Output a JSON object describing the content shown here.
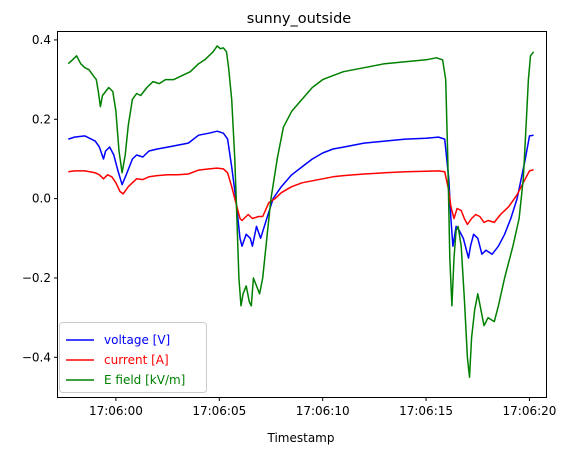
{
  "chart_data": {
    "type": "line",
    "title": "sunny_outside",
    "xlabel": "Timestamp",
    "ylabel": "",
    "x_unit": "seconds after 17:06:00",
    "xlim": [
      -2.8,
      20.8
    ],
    "ylim": [
      -0.5,
      0.42
    ],
    "x_ticks": [
      0,
      5,
      10,
      15,
      20
    ],
    "x_tick_labels": [
      "17:06:00",
      "17:06:05",
      "17:06:10",
      "17:06:15",
      "17:06:20"
    ],
    "y_ticks": [
      -0.4,
      -0.2,
      0.0,
      0.2,
      0.4
    ],
    "y_tick_labels": [
      "−0.4",
      "−0.2",
      "0.0",
      "0.2",
      "0.4"
    ],
    "grid": false,
    "legend": "lower-left",
    "series": [
      {
        "name": "voltage [V]",
        "color": "#0000ff",
        "points": [
          [
            -2.3,
            0.15
          ],
          [
            -2.0,
            0.155
          ],
          [
            -1.5,
            0.158
          ],
          [
            -1.0,
            0.145
          ],
          [
            -0.8,
            0.13
          ],
          [
            -0.6,
            0.1
          ],
          [
            -0.5,
            0.12
          ],
          [
            -0.3,
            0.13
          ],
          [
            -0.1,
            0.11
          ],
          [
            0.1,
            0.07
          ],
          [
            0.3,
            0.035
          ],
          [
            0.5,
            0.06
          ],
          [
            0.8,
            0.1
          ],
          [
            1.0,
            0.11
          ],
          [
            1.3,
            0.105
          ],
          [
            1.6,
            0.12
          ],
          [
            2.0,
            0.125
          ],
          [
            2.5,
            0.13
          ],
          [
            3.0,
            0.135
          ],
          [
            3.5,
            0.14
          ],
          [
            4.0,
            0.16
          ],
          [
            4.5,
            0.165
          ],
          [
            4.9,
            0.17
          ],
          [
            5.2,
            0.165
          ],
          [
            5.4,
            0.15
          ],
          [
            5.6,
            0.08
          ],
          [
            5.8,
            0.0
          ],
          [
            6.0,
            -0.1
          ],
          [
            6.1,
            -0.12
          ],
          [
            6.3,
            -0.09
          ],
          [
            6.5,
            -0.1
          ],
          [
            6.6,
            -0.12
          ],
          [
            6.8,
            -0.07
          ],
          [
            7.0,
            -0.1
          ],
          [
            7.3,
            -0.05
          ],
          [
            7.6,
            0.0
          ],
          [
            8.0,
            0.03
          ],
          [
            8.5,
            0.06
          ],
          [
            9.0,
            0.08
          ],
          [
            9.5,
            0.1
          ],
          [
            10.0,
            0.115
          ],
          [
            10.5,
            0.125
          ],
          [
            11.0,
            0.13
          ],
          [
            11.5,
            0.135
          ],
          [
            12.0,
            0.14
          ],
          [
            13.0,
            0.145
          ],
          [
            14.0,
            0.15
          ],
          [
            15.0,
            0.152
          ],
          [
            15.6,
            0.155
          ],
          [
            15.9,
            0.15
          ],
          [
            16.1,
            0.05
          ],
          [
            16.2,
            -0.05
          ],
          [
            16.3,
            -0.12
          ],
          [
            16.45,
            -0.07
          ],
          [
            16.6,
            -0.08
          ],
          [
            16.8,
            -0.1
          ],
          [
            16.9,
            -0.12
          ],
          [
            17.05,
            -0.15
          ],
          [
            17.15,
            -0.12
          ],
          [
            17.3,
            -0.09
          ],
          [
            17.5,
            -0.1
          ],
          [
            17.7,
            -0.14
          ],
          [
            17.9,
            -0.13
          ],
          [
            18.2,
            -0.14
          ],
          [
            18.5,
            -0.12
          ],
          [
            18.8,
            -0.09
          ],
          [
            19.1,
            -0.05
          ],
          [
            19.4,
            0.0
          ],
          [
            19.6,
            0.05
          ],
          [
            19.8,
            0.1
          ],
          [
            20.0,
            0.158
          ],
          [
            20.2,
            0.16
          ]
        ]
      },
      {
        "name": "current [A]",
        "color": "#ff0000",
        "points": [
          [
            -2.3,
            0.068
          ],
          [
            -2.0,
            0.07
          ],
          [
            -1.5,
            0.07
          ],
          [
            -1.0,
            0.065
          ],
          [
            -0.8,
            0.06
          ],
          [
            -0.6,
            0.05
          ],
          [
            -0.4,
            0.06
          ],
          [
            -0.2,
            0.055
          ],
          [
            0.0,
            0.04
          ],
          [
            0.2,
            0.018
          ],
          [
            0.35,
            0.012
          ],
          [
            0.6,
            0.03
          ],
          [
            1.0,
            0.05
          ],
          [
            1.3,
            0.048
          ],
          [
            1.6,
            0.055
          ],
          [
            2.0,
            0.058
          ],
          [
            2.5,
            0.06
          ],
          [
            3.0,
            0.06
          ],
          [
            3.5,
            0.062
          ],
          [
            4.0,
            0.072
          ],
          [
            4.5,
            0.075
          ],
          [
            4.9,
            0.077
          ],
          [
            5.2,
            0.075
          ],
          [
            5.4,
            0.065
          ],
          [
            5.6,
            0.03
          ],
          [
            5.8,
            -0.01
          ],
          [
            6.0,
            -0.05
          ],
          [
            6.1,
            -0.055
          ],
          [
            6.4,
            -0.04
          ],
          [
            6.6,
            -0.05
          ],
          [
            6.9,
            -0.045
          ],
          [
            7.1,
            -0.045
          ],
          [
            7.4,
            -0.01
          ],
          [
            7.7,
            0.0
          ],
          [
            8.0,
            0.015
          ],
          [
            8.5,
            0.03
          ],
          [
            9.0,
            0.04
          ],
          [
            9.5,
            0.045
          ],
          [
            10.0,
            0.05
          ],
          [
            10.5,
            0.055
          ],
          [
            11.0,
            0.058
          ],
          [
            12.0,
            0.062
          ],
          [
            13.0,
            0.065
          ],
          [
            14.0,
            0.068
          ],
          [
            15.0,
            0.069
          ],
          [
            15.6,
            0.07
          ],
          [
            15.9,
            0.068
          ],
          [
            16.1,
            0.02
          ],
          [
            16.2,
            -0.02
          ],
          [
            16.35,
            -0.05
          ],
          [
            16.5,
            -0.025
          ],
          [
            16.7,
            -0.03
          ],
          [
            16.85,
            -0.05
          ],
          [
            17.0,
            -0.065
          ],
          [
            17.2,
            -0.05
          ],
          [
            17.4,
            -0.04
          ],
          [
            17.6,
            -0.045
          ],
          [
            17.8,
            -0.06
          ],
          [
            18.0,
            -0.055
          ],
          [
            18.3,
            -0.06
          ],
          [
            18.6,
            -0.04
          ],
          [
            19.0,
            -0.02
          ],
          [
            19.4,
            0.01
          ],
          [
            19.8,
            0.05
          ],
          [
            20.0,
            0.07
          ],
          [
            20.2,
            0.073
          ]
        ]
      },
      {
        "name": "E field [kV/m]",
        "color": "#008000",
        "points": [
          [
            -2.3,
            0.34
          ],
          [
            -2.1,
            0.35
          ],
          [
            -1.9,
            0.36
          ],
          [
            -1.7,
            0.34
          ],
          [
            -1.5,
            0.33
          ],
          [
            -1.3,
            0.325
          ],
          [
            -1.1,
            0.31
          ],
          [
            -0.95,
            0.3
          ],
          [
            -0.85,
            0.27
          ],
          [
            -0.75,
            0.232
          ],
          [
            -0.65,
            0.26
          ],
          [
            -0.5,
            0.27
          ],
          [
            -0.35,
            0.28
          ],
          [
            -0.15,
            0.27
          ],
          [
            0.0,
            0.22
          ],
          [
            0.15,
            0.12
          ],
          [
            0.3,
            0.065
          ],
          [
            0.45,
            0.11
          ],
          [
            0.6,
            0.185
          ],
          [
            0.8,
            0.25
          ],
          [
            1.0,
            0.265
          ],
          [
            1.2,
            0.26
          ],
          [
            1.5,
            0.28
          ],
          [
            1.8,
            0.295
          ],
          [
            2.1,
            0.29
          ],
          [
            2.4,
            0.3
          ],
          [
            2.8,
            0.3
          ],
          [
            3.2,
            0.31
          ],
          [
            3.6,
            0.32
          ],
          [
            4.0,
            0.34
          ],
          [
            4.3,
            0.35
          ],
          [
            4.7,
            0.37
          ],
          [
            4.9,
            0.385
          ],
          [
            5.05,
            0.378
          ],
          [
            5.2,
            0.38
          ],
          [
            5.35,
            0.37
          ],
          [
            5.45,
            0.33
          ],
          [
            5.6,
            0.25
          ],
          [
            5.75,
            0.1
          ],
          [
            5.85,
            -0.05
          ],
          [
            5.95,
            -0.2
          ],
          [
            6.05,
            -0.27
          ],
          [
            6.15,
            -0.24
          ],
          [
            6.3,
            -0.22
          ],
          [
            6.45,
            -0.26
          ],
          [
            6.55,
            -0.27
          ],
          [
            6.65,
            -0.2
          ],
          [
            6.8,
            -0.22
          ],
          [
            6.95,
            -0.24
          ],
          [
            7.1,
            -0.2
          ],
          [
            7.3,
            -0.1
          ],
          [
            7.5,
            0.0
          ],
          [
            7.8,
            0.1
          ],
          [
            8.1,
            0.18
          ],
          [
            8.5,
            0.22
          ],
          [
            9.0,
            0.25
          ],
          [
            9.5,
            0.28
          ],
          [
            10.0,
            0.3
          ],
          [
            10.5,
            0.31
          ],
          [
            11.0,
            0.32
          ],
          [
            12.0,
            0.33
          ],
          [
            13.0,
            0.34
          ],
          [
            14.0,
            0.345
          ],
          [
            15.0,
            0.35
          ],
          [
            15.5,
            0.355
          ],
          [
            15.8,
            0.35
          ],
          [
            15.95,
            0.3
          ],
          [
            16.05,
            0.1
          ],
          [
            16.15,
            -0.15
          ],
          [
            16.25,
            -0.27
          ],
          [
            16.35,
            -0.15
          ],
          [
            16.45,
            -0.08
          ],
          [
            16.55,
            -0.07
          ],
          [
            16.7,
            -0.12
          ],
          [
            16.85,
            -0.25
          ],
          [
            17.0,
            -0.4
          ],
          [
            17.1,
            -0.45
          ],
          [
            17.2,
            -0.35
          ],
          [
            17.35,
            -0.28
          ],
          [
            17.5,
            -0.24
          ],
          [
            17.65,
            -0.28
          ],
          [
            17.8,
            -0.32
          ],
          [
            18.0,
            -0.3
          ],
          [
            18.3,
            -0.31
          ],
          [
            18.5,
            -0.27
          ],
          [
            18.8,
            -0.2
          ],
          [
            19.2,
            -0.12
          ],
          [
            19.5,
            -0.05
          ],
          [
            19.7,
            0.05
          ],
          [
            19.85,
            0.2
          ],
          [
            19.95,
            0.3
          ],
          [
            20.05,
            0.36
          ],
          [
            20.2,
            0.37
          ]
        ]
      }
    ]
  }
}
